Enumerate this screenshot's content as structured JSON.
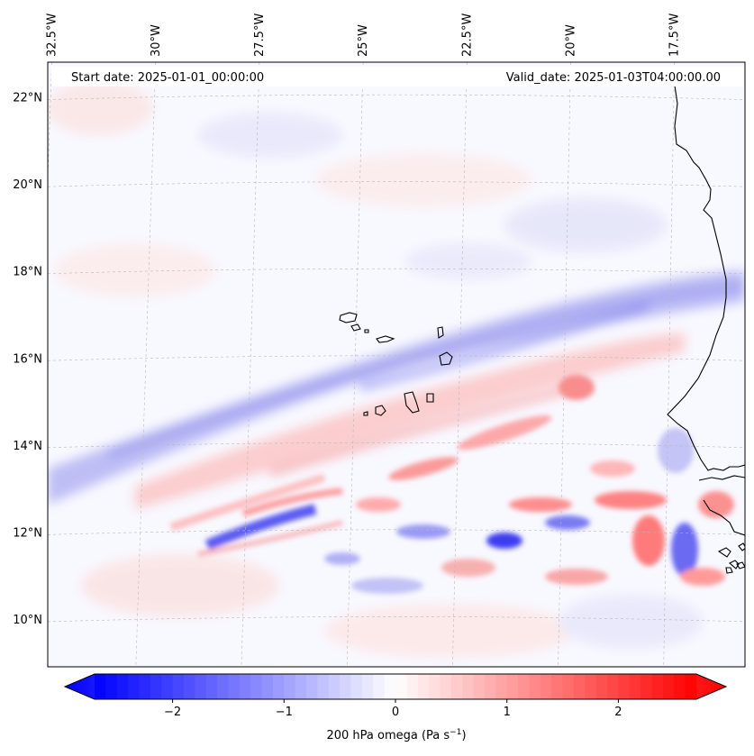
{
  "map": {
    "header": {
      "start_label": "Start date: 2025-01-01_00:00:00",
      "valid_label": "Valid_date: 2025-01-03T04:00:00.00"
    },
    "lon_ticks": [
      {
        "value": -32.5,
        "label": "32.5°W"
      },
      {
        "value": -30,
        "label": "30°W"
      },
      {
        "value": -27.5,
        "label": "27.5°W"
      },
      {
        "value": -25,
        "label": "25°W"
      },
      {
        "value": -22.5,
        "label": "22.5°W"
      },
      {
        "value": -20,
        "label": "20°W"
      },
      {
        "value": -17.5,
        "label": "17.5°W"
      }
    ],
    "lat_ticks": [
      {
        "value": 22,
        "label": "22°N"
      },
      {
        "value": 20,
        "label": "20°N"
      },
      {
        "value": 18,
        "label": "18°N"
      },
      {
        "value": 16,
        "label": "16°N"
      },
      {
        "value": 14,
        "label": "14°N"
      },
      {
        "value": 12,
        "label": "12°N"
      },
      {
        "value": 10,
        "label": "10°N"
      }
    ],
    "extent": {
      "lon_min": -32.6,
      "lon_max": -15.8,
      "lat_min": 8.9,
      "lat_max": 22.8
    },
    "gridlines": true,
    "colors": {
      "negative": "#0000ff",
      "neutral": "#ffffff",
      "positive": "#ff0000",
      "coast": "#000000"
    }
  },
  "colorbar": {
    "label_main": "200 hPa omega (Pa s",
    "label_exp": "−1",
    "label_end": ")",
    "vmin": -2.7,
    "vmax": 2.7,
    "ticks": [
      {
        "value": -2,
        "label": "−2"
      },
      {
        "value": -1,
        "label": "−1"
      },
      {
        "value": 0,
        "label": "0"
      },
      {
        "value": 1,
        "label": "1"
      },
      {
        "value": 2,
        "label": "2"
      }
    ]
  }
}
